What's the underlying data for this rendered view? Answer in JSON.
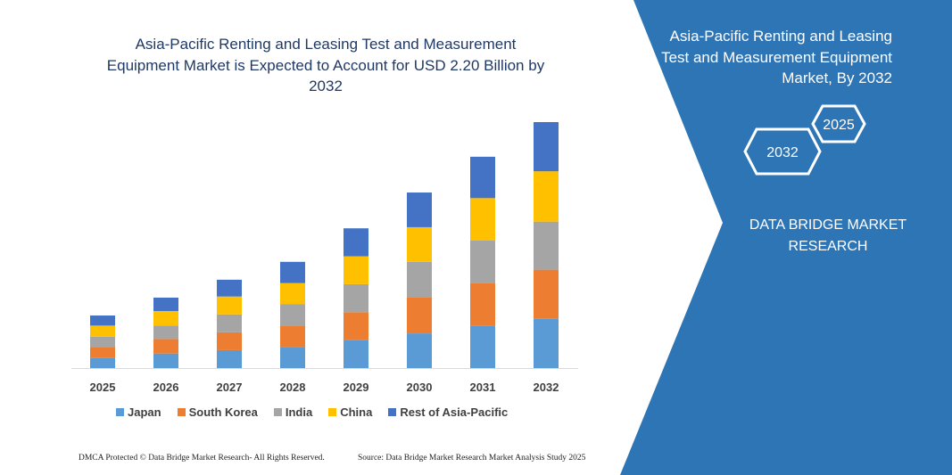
{
  "chart_data": {
    "type": "stacked-bar",
    "title": "Asia-Pacific Renting and Leasing Test and Measurement Equipment Market is Expected to Account for USD 2.20 Billion by 2032",
    "categories": [
      "2025",
      "2026",
      "2027",
      "2028",
      "2029",
      "2030",
      "2031",
      "2032"
    ],
    "series": [
      {
        "name": "Japan",
        "color": "#5b9bd5",
        "values": [
          0.09,
          0.13,
          0.16,
          0.19,
          0.25,
          0.31,
          0.38,
          0.44
        ]
      },
      {
        "name": "South Korea",
        "color": "#ed7d31",
        "values": [
          0.1,
          0.13,
          0.16,
          0.19,
          0.25,
          0.32,
          0.38,
          0.44
        ]
      },
      {
        "name": "India",
        "color": "#a5a5a5",
        "values": [
          0.09,
          0.12,
          0.16,
          0.19,
          0.25,
          0.32,
          0.38,
          0.43
        ]
      },
      {
        "name": "China",
        "color": "#ffc000",
        "values": [
          0.1,
          0.13,
          0.16,
          0.19,
          0.25,
          0.31,
          0.38,
          0.45
        ]
      },
      {
        "name": "Rest of Asia-Pacific",
        "color": "#4472c4",
        "values": [
          0.09,
          0.12,
          0.15,
          0.19,
          0.25,
          0.31,
          0.37,
          0.44
        ]
      }
    ],
    "ylim": [
      0,
      2.2
    ]
  },
  "panel": {
    "title": "Asia-Pacific Renting and Leasing Test and Measurement Equipment Market, By 2032",
    "years": [
      "2025",
      "2032"
    ],
    "brand": "DATA BRIDGE MARKET RESEARCH"
  },
  "footer": {
    "left": "DMCA Protected © Data Bridge Market Research- All Rights Reserved.",
    "right": "Source: Data Bridge Market Research Market Analysis Study 2025"
  }
}
